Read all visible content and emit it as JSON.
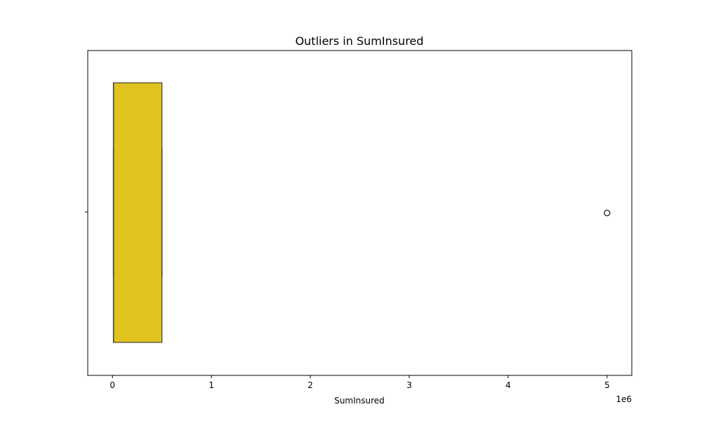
{
  "chart_data": {
    "type": "boxplot",
    "orientation": "horizontal",
    "title": "Outliers in SumInsured",
    "xlabel": "SumInsured",
    "ylabel": "",
    "x_offset_label": "1e6",
    "x_ticks": [
      0,
      1,
      2,
      3,
      4,
      5
    ],
    "x_tick_labels": [
      "0",
      "1",
      "2",
      "3",
      "4",
      "5"
    ],
    "xlim": [
      -0.25,
      5.25
    ],
    "x_scale": 1000000,
    "grid": false,
    "box": {
      "min": 0.01,
      "q1": 0.01,
      "median": 0.01,
      "q3": 0.5,
      "max": 0.5,
      "outliers": [
        5.0
      ],
      "color": "#e0c31f",
      "edge_color": "#3f3f3f"
    }
  }
}
